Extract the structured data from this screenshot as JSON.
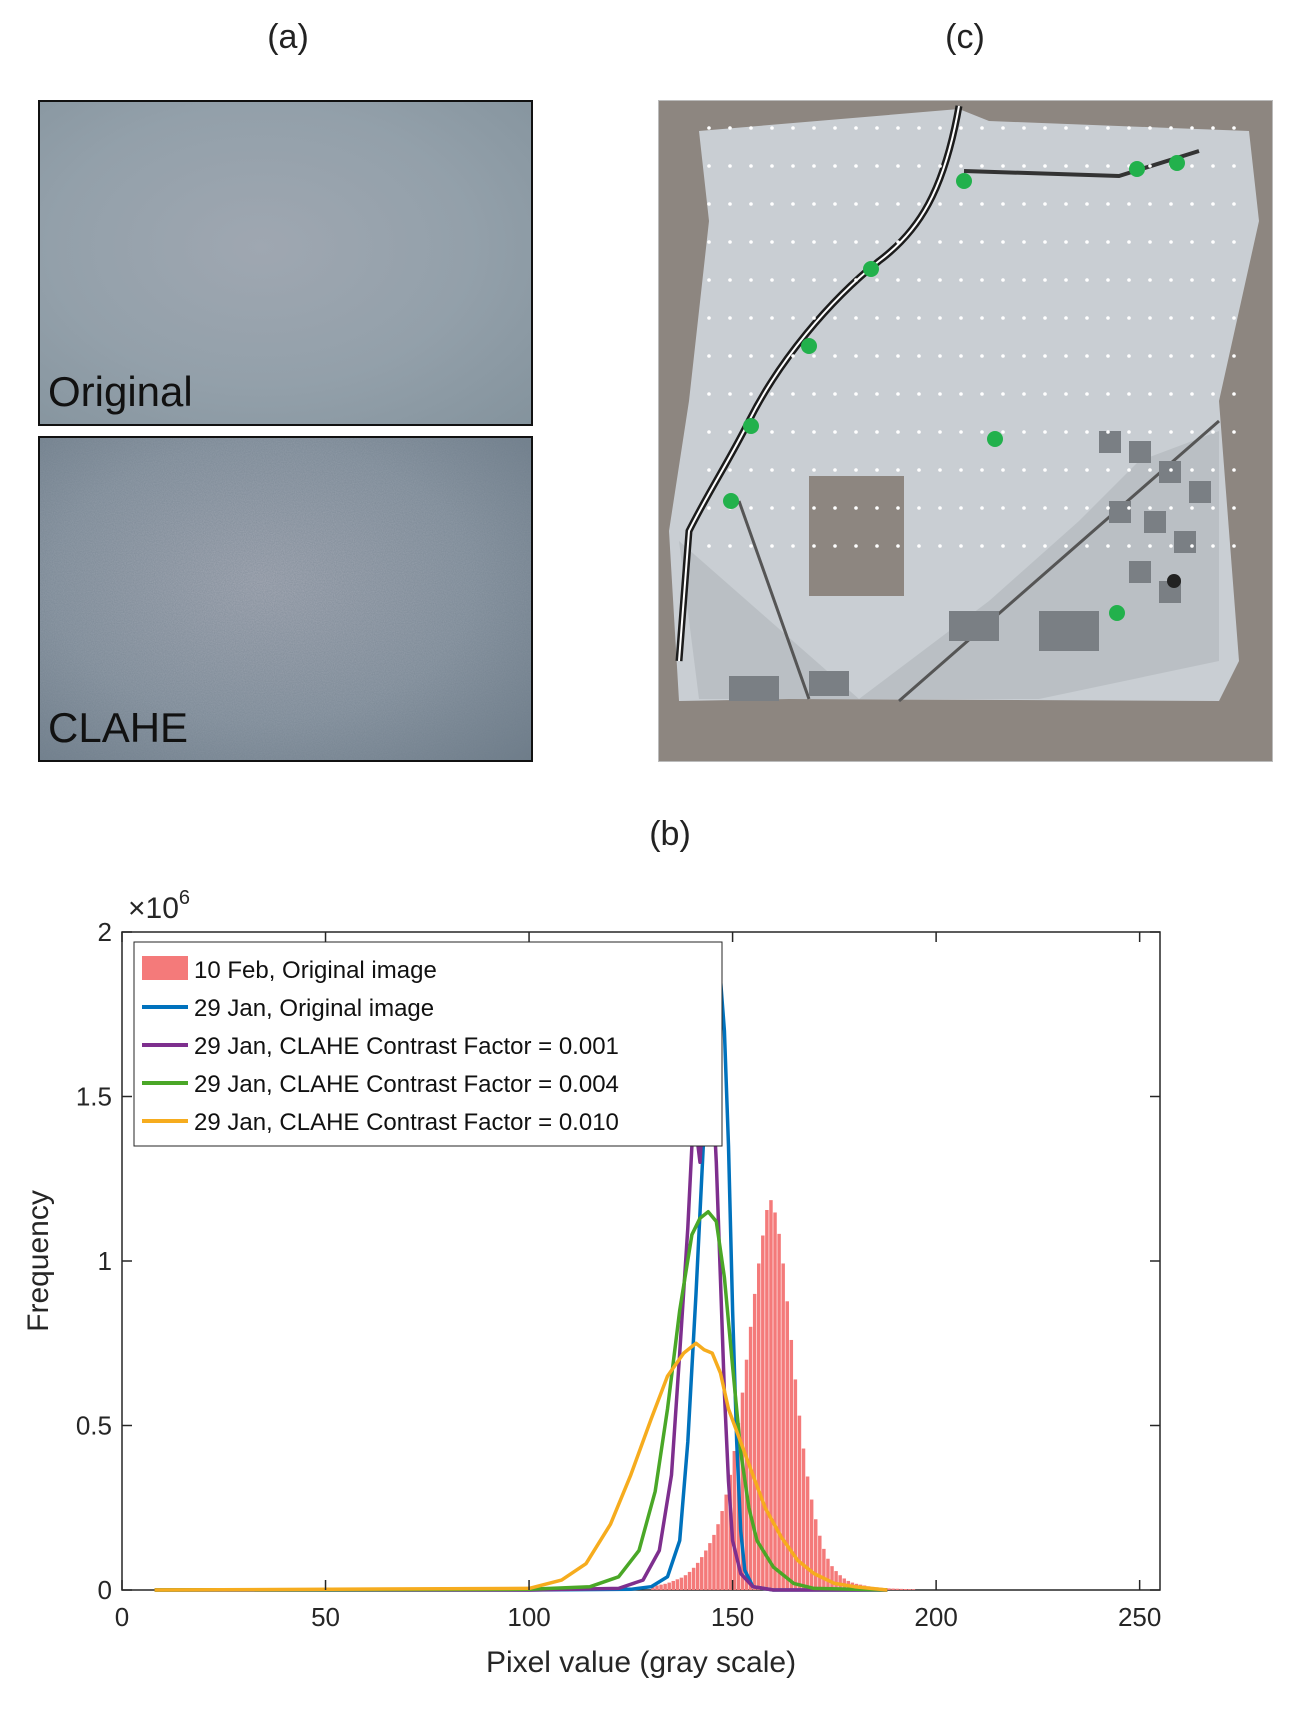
{
  "panels": {
    "a_label": "(a)",
    "b_label": "(b)",
    "c_label": "(c)",
    "a_top_caption": "Original",
    "a_bottom_caption": "CLAHE"
  },
  "chart_data": {
    "type": "line",
    "xlabel": "Pixel value (gray scale)",
    "ylabel": "Frequency",
    "y_exponent_label": "×10",
    "y_exponent": "6",
    "xlim": [
      0,
      255
    ],
    "ylim": [
      0,
      2
    ],
    "x_ticks": [
      0,
      50,
      100,
      150,
      200,
      250
    ],
    "y_ticks": [
      0,
      0.5,
      1,
      1.5,
      2
    ],
    "x_tick_labels": [
      "0",
      "50",
      "100",
      "150",
      "200",
      "250"
    ],
    "y_tick_labels": [
      "0",
      "0.5",
      "1",
      "1.5",
      "2"
    ],
    "grid": false,
    "legend_position": "top-left",
    "histogram": {
      "name": "10 Feb, Original image",
      "color": "#f47a7a",
      "bins": [
        [
          130,
          0.01
        ],
        [
          134,
          0.02
        ],
        [
          138,
          0.04
        ],
        [
          140,
          0.06
        ],
        [
          142,
          0.09
        ],
        [
          144,
          0.13
        ],
        [
          146,
          0.18
        ],
        [
          148,
          0.26
        ],
        [
          150,
          0.38
        ],
        [
          152,
          0.55
        ],
        [
          154,
          0.75
        ],
        [
          156,
          0.95
        ],
        [
          158,
          1.12
        ],
        [
          159,
          1.19
        ],
        [
          160,
          1.18
        ],
        [
          162,
          1.05
        ],
        [
          164,
          0.82
        ],
        [
          166,
          0.58
        ],
        [
          168,
          0.38
        ],
        [
          170,
          0.24
        ],
        [
          172,
          0.14
        ],
        [
          174,
          0.08
        ],
        [
          176,
          0.05
        ],
        [
          178,
          0.03
        ],
        [
          180,
          0.02
        ],
        [
          184,
          0.01
        ],
        [
          188,
          0.005
        ],
        [
          195,
          0.002
        ]
      ]
    },
    "series": [
      {
        "name": "29 Jan, Original image",
        "color": "#0072bd",
        "points": [
          [
            8,
            0
          ],
          [
            100,
            0
          ],
          [
            125,
            0.002
          ],
          [
            130,
            0.01
          ],
          [
            134,
            0.04
          ],
          [
            137,
            0.15
          ],
          [
            139,
            0.45
          ],
          [
            141,
            0.9
          ],
          [
            143,
            1.4
          ],
          [
            145,
            1.78
          ],
          [
            146,
            1.88
          ],
          [
            147,
            1.86
          ],
          [
            148,
            1.7
          ],
          [
            149,
            1.35
          ],
          [
            150,
            0.85
          ],
          [
            151,
            0.45
          ],
          [
            152,
            0.18
          ],
          [
            153,
            0.06
          ],
          [
            155,
            0.01
          ],
          [
            160,
            0
          ],
          [
            188,
            0
          ]
        ]
      },
      {
        "name": "29 Jan, CLAHE Contrast Factor = 0.001",
        "color": "#7e2f8e",
        "points": [
          [
            8,
            0
          ],
          [
            100,
            0
          ],
          [
            122,
            0.005
          ],
          [
            128,
            0.03
          ],
          [
            132,
            0.12
          ],
          [
            135,
            0.35
          ],
          [
            137,
            0.72
          ],
          [
            139,
            1.1
          ],
          [
            140,
            1.35
          ],
          [
            141,
            1.4
          ],
          [
            142,
            1.3
          ],
          [
            143,
            1.5
          ],
          [
            144,
            1.62
          ],
          [
            145,
            1.55
          ],
          [
            146,
            1.3
          ],
          [
            147,
            0.95
          ],
          [
            148,
            0.6
          ],
          [
            149,
            0.33
          ],
          [
            150,
            0.15
          ],
          [
            152,
            0.05
          ],
          [
            155,
            0.01
          ],
          [
            160,
            0
          ],
          [
            188,
            0
          ]
        ]
      },
      {
        "name": "29 Jan, CLAHE Contrast Factor = 0.004",
        "color": "#4aa727",
        "points": [
          [
            8,
            0
          ],
          [
            100,
            0.002
          ],
          [
            115,
            0.01
          ],
          [
            122,
            0.04
          ],
          [
            127,
            0.12
          ],
          [
            131,
            0.3
          ],
          [
            134,
            0.55
          ],
          [
            137,
            0.85
          ],
          [
            140,
            1.08
          ],
          [
            142,
            1.13
          ],
          [
            144,
            1.15
          ],
          [
            146,
            1.12
          ],
          [
            148,
            0.95
          ],
          [
            150,
            0.68
          ],
          [
            152,
            0.42
          ],
          [
            154,
            0.25
          ],
          [
            156,
            0.15
          ],
          [
            160,
            0.07
          ],
          [
            165,
            0.02
          ],
          [
            170,
            0.005
          ],
          [
            188,
            0
          ]
        ]
      },
      {
        "name": "29 Jan, CLAHE Contrast Factor = 0.010",
        "color": "#f6ac1e",
        "points": [
          [
            8,
            0
          ],
          [
            100,
            0.005
          ],
          [
            108,
            0.03
          ],
          [
            114,
            0.08
          ],
          [
            120,
            0.2
          ],
          [
            125,
            0.35
          ],
          [
            130,
            0.52
          ],
          [
            134,
            0.65
          ],
          [
            138,
            0.72
          ],
          [
            141,
            0.75
          ],
          [
            143,
            0.73
          ],
          [
            145,
            0.72
          ],
          [
            147,
            0.66
          ],
          [
            149,
            0.55
          ],
          [
            152,
            0.45
          ],
          [
            155,
            0.35
          ],
          [
            158,
            0.25
          ],
          [
            162,
            0.16
          ],
          [
            166,
            0.09
          ],
          [
            170,
            0.05
          ],
          [
            175,
            0.02
          ],
          [
            180,
            0.01
          ],
          [
            188,
            0
          ]
        ]
      }
    ]
  }
}
